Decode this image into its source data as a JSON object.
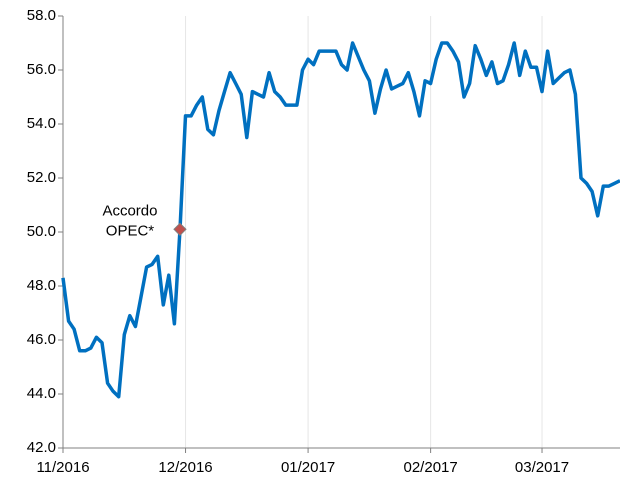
{
  "chart_data": {
    "type": "line",
    "values": [
      48.3,
      46.7,
      46.4,
      45.6,
      45.6,
      45.7,
      46.1,
      45.9,
      44.4,
      44.1,
      43.9,
      46.2,
      46.9,
      46.5,
      47.6,
      48.7,
      48.8,
      49.1,
      47.3,
      48.4,
      46.6,
      50.1,
      54.3,
      54.3,
      54.7,
      55.0,
      53.8,
      53.6,
      54.5,
      55.2,
      55.9,
      55.5,
      55.1,
      53.5,
      55.2,
      55.1,
      55.0,
      55.9,
      55.2,
      55.0,
      54.7,
      54.7,
      54.7,
      56.0,
      56.4,
      56.2,
      56.7,
      56.7,
      56.7,
      56.7,
      56.2,
      56.0,
      57.0,
      56.5,
      56.0,
      55.6,
      54.4,
      55.3,
      56.0,
      55.3,
      55.4,
      55.5,
      55.9,
      55.2,
      54.3,
      55.6,
      55.5,
      56.4,
      57.0,
      57.0,
      56.7,
      56.3,
      55.0,
      55.5,
      56.9,
      56.4,
      55.8,
      56.3,
      55.5,
      55.6,
      56.2,
      57.0,
      55.8,
      56.7,
      56.1,
      56.1,
      55.2,
      56.7,
      55.5,
      55.7,
      55.9,
      56.0,
      55.1,
      52.0,
      51.8,
      51.5,
      50.6,
      51.7,
      51.7,
      51.8,
      51.9
    ],
    "color": "#0070c0",
    "marker_color": "#c0504d",
    "annotation": [
      "Accordo",
      "OPEC*"
    ],
    "xlim": [
      0,
      100
    ],
    "xticks": [
      {
        "value": 0,
        "label": "11/2016"
      },
      {
        "value": 22,
        "label": "12/2016"
      },
      {
        "value": 44,
        "label": "01/2017"
      },
      {
        "value": 66,
        "label": "02/2017"
      },
      {
        "value": 86,
        "label": "03/2017"
      }
    ],
    "ylim": [
      42,
      58
    ],
    "yticks": [
      {
        "value": 42,
        "label": "42.0"
      },
      {
        "value": 44,
        "label": "44.0"
      },
      {
        "value": 46,
        "label": "46.0"
      },
      {
        "value": 48,
        "label": "48.0"
      },
      {
        "value": 50,
        "label": "50.0"
      },
      {
        "value": 52,
        "label": "52.0"
      },
      {
        "value": 54,
        "label": "54.0"
      },
      {
        "value": 56,
        "label": "56.0"
      },
      {
        "value": 58,
        "label": "58.0"
      }
    ],
    "grid": true
  }
}
